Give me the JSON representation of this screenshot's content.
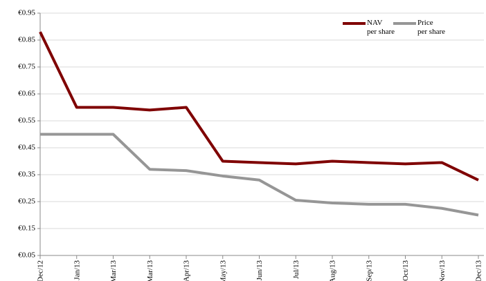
{
  "chart_data": {
    "type": "line",
    "categories": [
      "Dec/12",
      "Jan/13",
      "Mar/13",
      "Mar/13",
      "Apr/13",
      "May/13",
      "Jun/13",
      "Jul/13",
      "Aug/13",
      "Sep/13",
      "Oct/13",
      "Nov/13",
      "Dec/13"
    ],
    "series": [
      {
        "name": "NAV\nper share",
        "color": "#7f0000",
        "values": [
          0.88,
          0.6,
          0.6,
          0.59,
          0.6,
          0.4,
          0.395,
          0.39,
          0.4,
          0.395,
          0.39,
          0.395,
          0.33
        ]
      },
      {
        "name": "Price\nper share",
        "color": "#969696",
        "values": [
          0.5,
          0.5,
          0.5,
          0.37,
          0.365,
          0.345,
          0.33,
          0.255,
          0.245,
          0.24,
          0.24,
          0.225,
          0.2
        ]
      }
    ],
    "ylim": [
      0.05,
      0.95
    ],
    "yticks": [
      {
        "value": 0.05,
        "label": "€0.05"
      },
      {
        "value": 0.15,
        "label": "€0.15"
      },
      {
        "value": 0.25,
        "label": "€0.25"
      },
      {
        "value": 0.35,
        "label": "€0.35"
      },
      {
        "value": 0.45,
        "label": "€0.45"
      },
      {
        "value": 0.55,
        "label": "€0.55"
      },
      {
        "value": 0.65,
        "label": "€0.65"
      },
      {
        "value": 0.75,
        "label": "€0.75"
      },
      {
        "value": 0.85,
        "label": "€0.85"
      },
      {
        "value": 0.95,
        "label": "€0.95"
      }
    ],
    "grid": true,
    "legend": "top-right"
  }
}
